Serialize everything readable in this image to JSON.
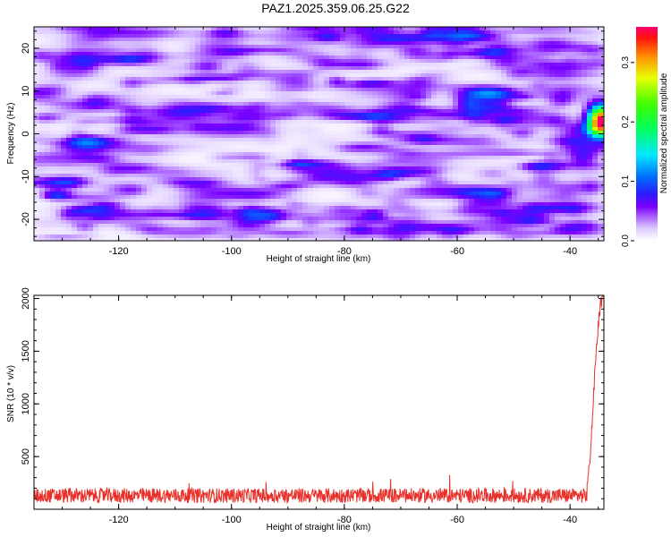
{
  "title": "PAZ1.2025.359.06.25.G22",
  "chart_data": [
    {
      "type": "heatmap",
      "xlabel": "Height of straight line (km)",
      "ylabel": "Frequency (Hz)",
      "xlim": [
        -135,
        -34
      ],
      "ylim": [
        -25,
        25
      ],
      "x_ticks": [
        -120,
        -100,
        -80,
        -60,
        -40
      ],
      "y_ticks": [
        -20,
        -10,
        0,
        10,
        20
      ],
      "colorbar": {
        "label": "Normalized spectral amplitude",
        "range": [
          0.0,
          0.36
        ],
        "ticks": [
          0.0,
          0.1,
          0.2,
          0.3
        ],
        "tick_labels": [
          "0.0",
          "0.1",
          "0.2",
          "0.3"
        ]
      },
      "hotspot": {
        "x": -34.5,
        "y": 3,
        "value": 0.36
      },
      "background_level": 0.05,
      "grid": false
    },
    {
      "type": "line",
      "xlabel": "Height of straight line (km)",
      "ylabel": "SNR (10 * v/v)",
      "xlim": [
        -135,
        -34
      ],
      "ylim": [
        0,
        2030
      ],
      "x_ticks": [
        -120,
        -100,
        -80,
        -60,
        -40
      ],
      "y_ticks": [
        500,
        1000,
        1500,
        2000
      ],
      "color": "#e8302a",
      "noise_floor": 130,
      "segments": [
        {
          "x": [
            -135,
            -37.0
          ],
          "y": [
            130,
            130
          ]
        },
        {
          "x": [
            -37.0,
            -36.5,
            -36.0,
            -35.5,
            -35.0,
            -34.6,
            -34.2
          ],
          "y": [
            200,
            450,
            900,
            1400,
            1750,
            1950,
            2000
          ]
        }
      ],
      "grid": false
    }
  ]
}
